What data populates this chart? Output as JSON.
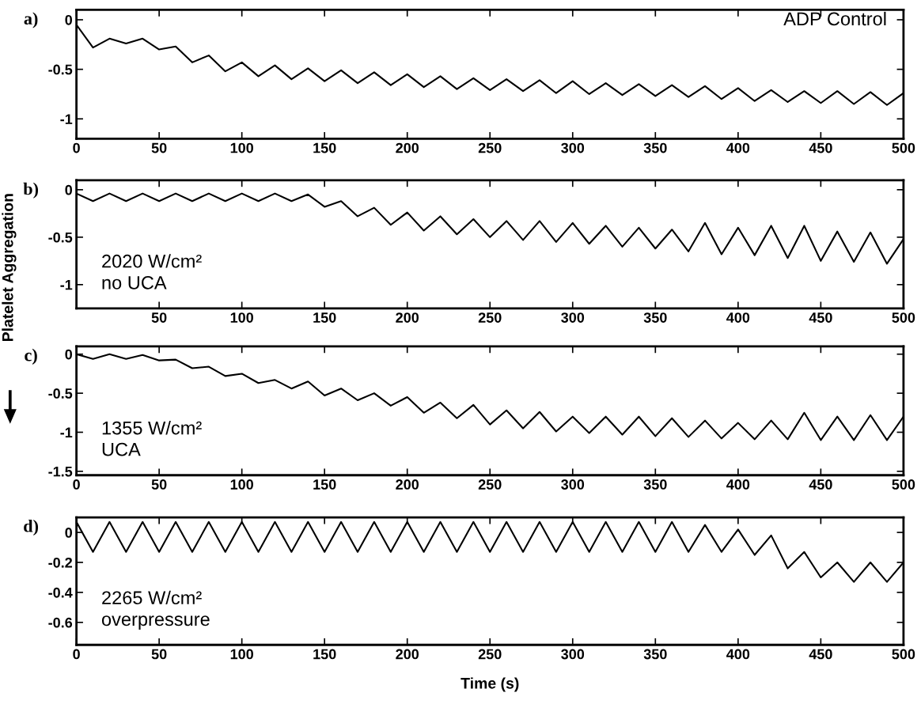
{
  "chart_data": [
    {
      "type": "line",
      "title": "a)",
      "annotations": [
        "ADP Control"
      ],
      "xlim": [
        0,
        500
      ],
      "xticks": [
        0,
        50,
        100,
        150,
        200,
        250,
        300,
        350,
        400,
        450,
        500
      ],
      "ylim": [
        -1.2,
        0.1
      ],
      "yticks": [
        0,
        -0.5,
        -1
      ],
      "grid": false,
      "x": [
        0,
        10,
        20,
        30,
        40,
        50,
        60,
        70,
        80,
        90,
        100,
        110,
        120,
        130,
        140,
        150,
        160,
        170,
        180,
        190,
        200,
        210,
        220,
        230,
        240,
        250,
        260,
        270,
        280,
        290,
        300,
        310,
        320,
        330,
        340,
        350,
        360,
        370,
        380,
        390,
        400,
        410,
        420,
        430,
        440,
        450,
        460,
        470,
        480,
        490,
        500
      ],
      "series": [
        {
          "color": "#000000",
          "values": [
            -0.05,
            -0.28,
            -0.19,
            -0.24,
            -0.19,
            -0.3,
            -0.27,
            -0.43,
            -0.36,
            -0.52,
            -0.43,
            -0.57,
            -0.46,
            -0.6,
            -0.49,
            -0.62,
            -0.51,
            -0.64,
            -0.53,
            -0.66,
            -0.55,
            -0.68,
            -0.57,
            -0.7,
            -0.59,
            -0.71,
            -0.6,
            -0.72,
            -0.61,
            -0.74,
            -0.62,
            -0.75,
            -0.64,
            -0.76,
            -0.65,
            -0.77,
            -0.66,
            -0.78,
            -0.67,
            -0.8,
            -0.69,
            -0.82,
            -0.71,
            -0.83,
            -0.72,
            -0.84,
            -0.72,
            -0.85,
            -0.73,
            -0.86,
            -0.74
          ]
        }
      ]
    },
    {
      "type": "line",
      "title": "b)",
      "annotations": [
        "2020 W/cm²\nno UCA"
      ],
      "xlim": [
        0,
        500
      ],
      "xticks": [
        50,
        100,
        150,
        200,
        250,
        300,
        350,
        400,
        450,
        500
      ],
      "ylim": [
        -1.25,
        0.1
      ],
      "yticks": [
        0,
        -0.5,
        -1
      ],
      "grid": false,
      "x": [
        0,
        10,
        20,
        30,
        40,
        50,
        60,
        70,
        80,
        90,
        100,
        110,
        120,
        130,
        140,
        150,
        160,
        170,
        180,
        190,
        200,
        210,
        220,
        230,
        240,
        250,
        260,
        270,
        280,
        290,
        300,
        310,
        320,
        330,
        340,
        350,
        360,
        370,
        380,
        390,
        400,
        410,
        420,
        430,
        440,
        450,
        460,
        470,
        480,
        490,
        500
      ],
      "series": [
        {
          "color": "#000000",
          "values": [
            -0.04,
            -0.12,
            -0.04,
            -0.12,
            -0.04,
            -0.12,
            -0.04,
            -0.12,
            -0.04,
            -0.12,
            -0.04,
            -0.12,
            -0.04,
            -0.12,
            -0.05,
            -0.18,
            -0.12,
            -0.28,
            -0.19,
            -0.37,
            -0.24,
            -0.43,
            -0.28,
            -0.47,
            -0.31,
            -0.5,
            -0.33,
            -0.53,
            -0.33,
            -0.55,
            -0.35,
            -0.57,
            -0.38,
            -0.6,
            -0.4,
            -0.62,
            -0.42,
            -0.65,
            -0.35,
            -0.68,
            -0.4,
            -0.69,
            -0.38,
            -0.72,
            -0.38,
            -0.75,
            -0.44,
            -0.76,
            -0.45,
            -0.78,
            -0.52
          ]
        }
      ]
    },
    {
      "type": "line",
      "title": "c)",
      "ylabel": "Platelet Aggregation",
      "annotations": [
        "1355 W/cm²\nUCA"
      ],
      "xlim": [
        0,
        500
      ],
      "xticks": [
        0,
        50,
        100,
        150,
        200,
        250,
        300,
        350,
        400,
        450,
        500
      ],
      "ylim": [
        -1.55,
        0.1
      ],
      "yticks": [
        0,
        -0.5,
        -1,
        -1.5
      ],
      "grid": false,
      "x": [
        0,
        10,
        20,
        30,
        40,
        50,
        60,
        70,
        80,
        90,
        100,
        110,
        120,
        130,
        140,
        150,
        160,
        170,
        180,
        190,
        200,
        210,
        220,
        230,
        240,
        250,
        260,
        270,
        280,
        290,
        300,
        310,
        320,
        330,
        340,
        350,
        360,
        370,
        380,
        390,
        400,
        410,
        420,
        430,
        440,
        450,
        460,
        470,
        480,
        490,
        500
      ],
      "series": [
        {
          "color": "#000000",
          "values": [
            0.0,
            -0.06,
            0.0,
            -0.06,
            -0.01,
            -0.08,
            -0.07,
            -0.18,
            -0.16,
            -0.28,
            -0.25,
            -0.37,
            -0.33,
            -0.44,
            -0.35,
            -0.53,
            -0.44,
            -0.59,
            -0.5,
            -0.66,
            -0.55,
            -0.75,
            -0.62,
            -0.82,
            -0.65,
            -0.9,
            -0.72,
            -0.95,
            -0.74,
            -0.99,
            -0.8,
            -1.01,
            -0.8,
            -1.03,
            -0.8,
            -1.05,
            -0.82,
            -1.06,
            -0.85,
            -1.08,
            -0.88,
            -1.09,
            -0.85,
            -1.09,
            -0.75,
            -1.1,
            -0.8,
            -1.1,
            -0.78,
            -1.1,
            -0.8
          ]
        }
      ]
    },
    {
      "type": "line",
      "title": "d)",
      "xlabel": "Time (s)",
      "annotations": [
        "2265 W/cm²\noverpressure"
      ],
      "xlim": [
        0,
        500
      ],
      "xticks": [
        0,
        50,
        100,
        150,
        200,
        250,
        300,
        350,
        400,
        450,
        500
      ],
      "ylim": [
        -0.75,
        0.1
      ],
      "yticks": [
        0,
        -0.2,
        -0.4,
        -0.6
      ],
      "grid": false,
      "x": [
        0,
        10,
        20,
        30,
        40,
        50,
        60,
        70,
        80,
        90,
        100,
        110,
        120,
        130,
        140,
        150,
        160,
        170,
        180,
        190,
        200,
        210,
        220,
        230,
        240,
        250,
        260,
        270,
        280,
        290,
        300,
        310,
        320,
        330,
        340,
        350,
        360,
        370,
        380,
        390,
        400,
        410,
        420,
        430,
        440,
        450,
        460,
        470,
        480,
        490,
        500
      ],
      "series": [
        {
          "color": "#000000",
          "values": [
            0.07,
            -0.13,
            0.07,
            -0.13,
            0.07,
            -0.13,
            0.07,
            -0.13,
            0.07,
            -0.13,
            0.07,
            -0.13,
            0.07,
            -0.13,
            0.07,
            -0.13,
            0.07,
            -0.13,
            0.07,
            -0.13,
            0.07,
            -0.13,
            0.07,
            -0.13,
            0.07,
            -0.13,
            0.07,
            -0.13,
            0.07,
            -0.13,
            0.07,
            -0.13,
            0.07,
            -0.13,
            0.07,
            -0.13,
            0.07,
            -0.13,
            0.05,
            -0.13,
            0.02,
            -0.15,
            -0.02,
            -0.24,
            -0.13,
            -0.3,
            -0.2,
            -0.33,
            -0.2,
            -0.33,
            -0.2
          ]
        }
      ]
    }
  ]
}
